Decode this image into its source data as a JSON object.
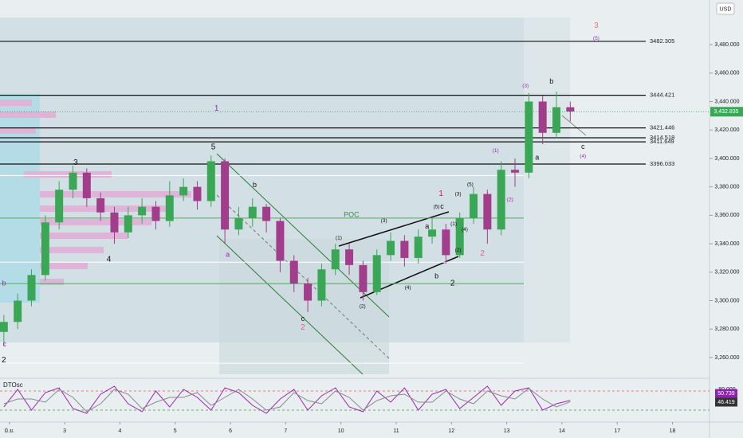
{
  "chart_data": {
    "type": "candlestick",
    "currency": "USD",
    "x": [
      -0.1,
      0.15,
      0.4,
      0.65,
      0.9,
      1.15,
      1.4,
      1.65,
      1.9,
      2.15,
      2.4,
      2.65,
      2.9,
      3.15,
      3.4,
      3.65,
      3.9,
      4.15,
      4.4,
      4.65,
      4.9,
      5.15,
      5.4,
      5.65,
      5.9,
      6.15,
      6.4,
      6.65,
      6.9,
      7.15,
      7.4,
      7.65,
      7.9,
      8.15,
      8.4,
      8.65,
      8.9,
      9.15,
      9.4,
      9.65,
      9.9,
      10.15
    ],
    "open": [
      3278,
      3285,
      3300,
      3318,
      3355,
      3378,
      3390,
      3372,
      3362,
      3348,
      3360,
      3366,
      3356,
      3374,
      3380,
      3370,
      3398,
      3350,
      3358,
      3366,
      3356,
      3328,
      3312,
      3300,
      3322,
      3336,
      3325,
      3306,
      3332,
      3342,
      3330,
      3345,
      3350,
      3332,
      3358,
      3375,
      3350,
      3392,
      3390,
      3440,
      3418,
      3436
    ],
    "high": [
      3290,
      3305,
      3322,
      3360,
      3384,
      3395,
      3393,
      3376,
      3366,
      3366,
      3372,
      3370,
      3384,
      3386,
      3384,
      3402,
      3400,
      3366,
      3372,
      3368,
      3358,
      3332,
      3316,
      3326,
      3340,
      3340,
      3328,
      3336,
      3348,
      3346,
      3350,
      3358,
      3354,
      3362,
      3380,
      3378,
      3398,
      3400,
      3446,
      3444,
      3447,
      3440
    ],
    "low": [
      3268,
      3280,
      3296,
      3314,
      3350,
      3372,
      3366,
      3356,
      3340,
      3344,
      3354,
      3350,
      3352,
      3370,
      3364,
      3366,
      3340,
      3346,
      3352,
      3348,
      3320,
      3306,
      3292,
      3296,
      3318,
      3318,
      3300,
      3304,
      3328,
      3324,
      3326,
      3340,
      3326,
      3330,
      3354,
      3340,
      3346,
      3380,
      3386,
      3410,
      3414,
      3426
    ],
    "close": [
      3285,
      3300,
      3318,
      3355,
      3378,
      3390,
      3372,
      3362,
      3348,
      3360,
      3366,
      3356,
      3374,
      3380,
      3370,
      3398,
      3350,
      3358,
      3366,
      3356,
      3328,
      3312,
      3300,
      3322,
      3336,
      3325,
      3306,
      3332,
      3342,
      3330,
      3345,
      3350,
      3332,
      3358,
      3375,
      3350,
      3392,
      3390,
      3440,
      3418,
      3436,
      3433
    ],
    "up_color": "#3aa757",
    "down_color": "#a23d8c",
    "xlim": [
      -0.17,
      12.67
    ],
    "xticks": [
      {
        "value": 0,
        "label": "มิ.ย."
      },
      {
        "value": 1,
        "label": "3"
      },
      {
        "value": 2,
        "label": "4"
      },
      {
        "value": 3,
        "label": "5"
      },
      {
        "value": 4,
        "label": "6"
      },
      {
        "value": 5,
        "label": "7"
      },
      {
        "value": 6,
        "label": "10"
      },
      {
        "value": 7,
        "label": "11"
      },
      {
        "value": 8,
        "label": "12"
      },
      {
        "value": 9,
        "label": "13"
      },
      {
        "value": 10,
        "label": "14"
      },
      {
        "value": 11,
        "label": "17"
      },
      {
        "value": 12,
        "label": "18"
      }
    ],
    "ylim": [
      3245.4,
      3511.4
    ],
    "yticks": [
      {
        "value": 3260,
        "label": "3,260.000"
      },
      {
        "value": 3280,
        "label": "3,280.000"
      },
      {
        "value": 3300,
        "label": "3,300.000"
      },
      {
        "value": 3320,
        "label": "3,320.000"
      },
      {
        "value": 3340,
        "label": "3,340.000"
      },
      {
        "value": 3360,
        "label": "3,360.000"
      },
      {
        "value": 3380,
        "label": "3,380.000"
      },
      {
        "value": 3400,
        "label": "3,400.000"
      },
      {
        "value": 3420,
        "label": "3,420.000"
      },
      {
        "value": 3440,
        "label": "3,440.000"
      },
      {
        "value": 3460,
        "label": "3,460.000"
      },
      {
        "value": 3480,
        "label": "3,480.000"
      }
    ],
    "last_price": {
      "value": 3432.835,
      "label": "3,432.835"
    },
    "levels": [
      3482.305,
      3444.421,
      3421.446,
      3414.518,
      3411.649,
      3396.033
    ],
    "guides": [
      {
        "value": 3388,
        "color": "#ffffff"
      },
      {
        "value": 3327,
        "color": "#ffffff"
      },
      {
        "value": 3256,
        "color": "#ffffff"
      },
      {
        "value": 3358,
        "color": "#4caf50"
      },
      {
        "value": 3312,
        "color": "#4caf50"
      }
    ],
    "annotations": [
      {
        "text": "1",
        "x": 3.75,
        "y": 3435,
        "color": "#9c27b0"
      },
      {
        "text": "3",
        "x": 1.2,
        "y": 3397,
        "color": "#111111"
      },
      {
        "text": "4",
        "x": 1.8,
        "y": 3329,
        "color": "#111111"
      },
      {
        "text": "5",
        "x": 3.69,
        "y": 3408,
        "color": "#111111"
      },
      {
        "text": "2",
        "x": -0.15,
        "y": 3258,
        "color": "#111111"
      },
      {
        "text": "c",
        "x": -0.12,
        "y": 3269,
        "color": "#9c27b0"
      },
      {
        "text": "b",
        "x": -0.1,
        "y": 3312,
        "color": "#9c27b0"
      },
      {
        "text": "b",
        "x": 4.44,
        "y": 3381,
        "color": "#111111"
      },
      {
        "text": "a",
        "x": 3.95,
        "y": 3332,
        "color": "#9c27b0"
      },
      {
        "text": "c",
        "x": 5.31,
        "y": 3287,
        "color": "#111111"
      },
      {
        "text": "2",
        "x": 5.31,
        "y": 3281,
        "color": "#e0608a"
      },
      {
        "text": "(1)",
        "x": 5.96,
        "y": 3344,
        "color": "#111111"
      },
      {
        "text": "(2)",
        "x": 6.39,
        "y": 3296,
        "color": "#111111"
      },
      {
        "text": "(3)",
        "x": 6.78,
        "y": 3356,
        "color": "#111111"
      },
      {
        "text": "(4)",
        "x": 7.21,
        "y": 3309,
        "color": "#111111"
      },
      {
        "text": "(5)",
        "x": 7.73,
        "y": 3366,
        "color": "#111111"
      },
      {
        "text": "c",
        "x": 7.83,
        "y": 3366,
        "color": "#111111"
      },
      {
        "text": "a",
        "x": 7.56,
        "y": 3352,
        "color": "#111111"
      },
      {
        "text": "b",
        "x": 7.73,
        "y": 3317,
        "color": "#111111"
      },
      {
        "text": "1",
        "x": 7.81,
        "y": 3375,
        "color": "#c2185b"
      },
      {
        "text": "2",
        "x": 8.02,
        "y": 3312,
        "color": "#111111"
      },
      {
        "text": "(1)",
        "x": 8.04,
        "y": 3354,
        "color": "#111111"
      },
      {
        "text": "(2)",
        "x": 8.12,
        "y": 3335.5,
        "color": "#111111"
      },
      {
        "text": "(3)",
        "x": 8.12,
        "y": 3375,
        "color": "#111111"
      },
      {
        "text": "(4)",
        "x": 8.24,
        "y": 3350,
        "color": "#111111"
      },
      {
        "text": "(5)",
        "x": 8.34,
        "y": 3381.5,
        "color": "#111111"
      },
      {
        "text": "2",
        "x": 8.56,
        "y": 3333,
        "color": "#e0608a"
      },
      {
        "text": "(1)",
        "x": 8.8,
        "y": 3405.5,
        "color": "#9c27b0"
      },
      {
        "text": "(2)",
        "x": 9.06,
        "y": 3371,
        "color": "#9c27b0"
      },
      {
        "text": "(3)",
        "x": 9.34,
        "y": 3451,
        "color": "#9c27b0"
      },
      {
        "text": "b",
        "x": 9.81,
        "y": 3454,
        "color": "#111111"
      },
      {
        "text": "a",
        "x": 9.55,
        "y": 3400.5,
        "color": "#111111"
      },
      {
        "text": "c",
        "x": 10.38,
        "y": 3408,
        "color": "#111111"
      },
      {
        "text": "(4)",
        "x": 10.38,
        "y": 3401.6,
        "color": "#9c27b0"
      },
      {
        "text": "3",
        "x": 10.62,
        "y": 3493.4,
        "color": "#e57373"
      },
      {
        "text": "(5)",
        "x": 10.62,
        "y": 3484.5,
        "color": "#9c27b0"
      },
      {
        "text": "POC",
        "x": 6.19,
        "y": 3360,
        "color": "#388e3c"
      }
    ],
    "oscillator": {
      "title": "DTOsc",
      "ylim": [
        -17.5,
        120
      ],
      "yticks": [
        {
          "value": 80,
          "label": "80.000"
        }
      ],
      "bands": [
        {
          "value": 80,
          "color": "#e05a5a"
        },
        {
          "value": 20,
          "color": "#3a9a3a"
        }
      ],
      "series": [
        {
          "color": "#9c27b0",
          "values": [
            30,
            85,
            20,
            75,
            90,
            25,
            10,
            70,
            95,
            40,
            15,
            80,
            30,
            85,
            60,
            20,
            90,
            75,
            35,
            10,
            55,
            85,
            20,
            65,
            90,
            30,
            15,
            80,
            45,
            90,
            20,
            70,
            85,
            25,
            60,
            95,
            35,
            80,
            90,
            20,
            40,
            50.739
          ],
          "last_label": "50.739"
        },
        {
          "color": "#8a8a8a",
          "values": [
            40,
            55,
            55,
            45,
            85,
            60,
            15,
            40,
            85,
            70,
            25,
            45,
            60,
            60,
            75,
            35,
            60,
            85,
            55,
            20,
            30,
            75,
            50,
            40,
            80,
            60,
            20,
            50,
            65,
            70,
            45,
            45,
            80,
            55,
            40,
            80,
            65,
            55,
            88,
            55,
            30,
            46.419
          ],
          "last_label": "46.419"
        }
      ]
    }
  }
}
